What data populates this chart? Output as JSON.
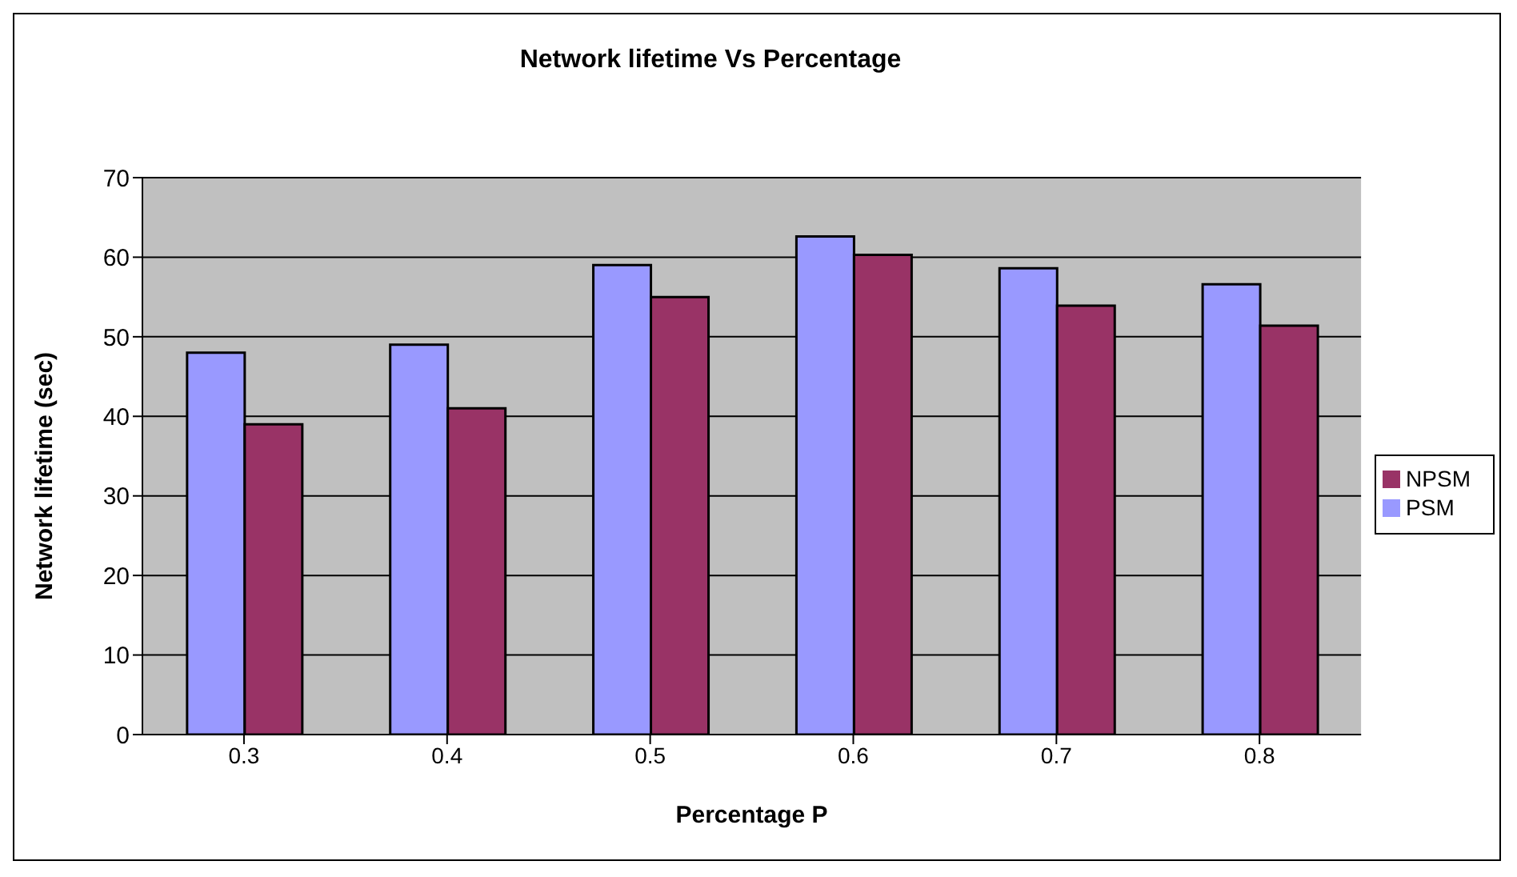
{
  "chart_data": {
    "type": "bar",
    "title": "Network lifetime Vs Percentage",
    "xlabel": "Percentage P",
    "ylabel": "Network lifetime (sec)",
    "categories": [
      "0.3",
      "0.4",
      "0.5",
      "0.6",
      "0.7",
      "0.8"
    ],
    "series": [
      {
        "name": "PSM",
        "color": "#9999ff",
        "values": [
          48,
          49,
          59,
          62.6,
          58.6,
          56.6
        ]
      },
      {
        "name": "NPSM",
        "color": "#993366",
        "values": [
          39,
          41,
          55,
          60.3,
          53.9,
          51.4
        ]
      }
    ],
    "ylim": [
      0,
      70
    ],
    "yticks": [
      0,
      10,
      20,
      30,
      40,
      50,
      60,
      70
    ],
    "grid": "y",
    "legend": "right"
  }
}
